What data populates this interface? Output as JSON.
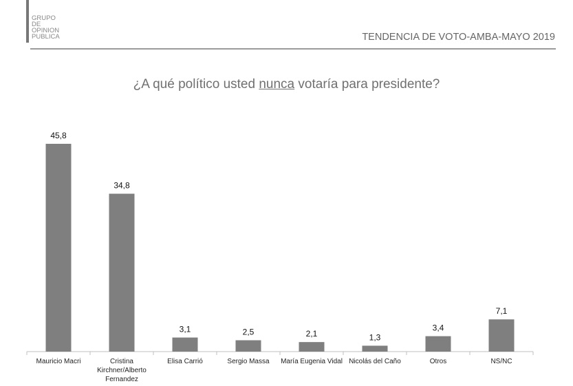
{
  "logo": {
    "lines": [
      "GRUPO",
      "DE",
      "OPINION",
      "PUBLICA"
    ]
  },
  "header": {
    "title": "TENDENCIA DE VOTO-AMBA-MAYO 2019"
  },
  "question": {
    "before": "¿A qué político usted ",
    "emphasis": "nunca",
    "after": " votaría para presidente?"
  },
  "colors": {
    "bar": "#7f7f7f",
    "axis": "#bfbfbf"
  },
  "chart_data": {
    "type": "bar",
    "title": "¿A qué político usted nunca votaría para presidente?",
    "categories": [
      [
        "Mauricio Macri"
      ],
      [
        "Cristina",
        "Kirchner/Alberto",
        "Fernandez"
      ],
      [
        "Elisa Carrió"
      ],
      [
        "Sergio Massa"
      ],
      [
        "María Eugenia Vidal"
      ],
      [
        "Nicolás del Caño"
      ],
      [
        "Otros"
      ],
      [
        "NS/NC"
      ]
    ],
    "values": [
      45.8,
      34.8,
      3.1,
      2.5,
      2.1,
      1.3,
      3.4,
      7.1
    ],
    "value_labels": [
      "45,8",
      "34,8",
      "3,1",
      "2,5",
      "2,1",
      "1,3",
      "3,4",
      "7,1"
    ],
    "xlabel": "",
    "ylabel": "",
    "ylim": [
      0,
      50
    ],
    "grid": false,
    "legend": "none"
  }
}
